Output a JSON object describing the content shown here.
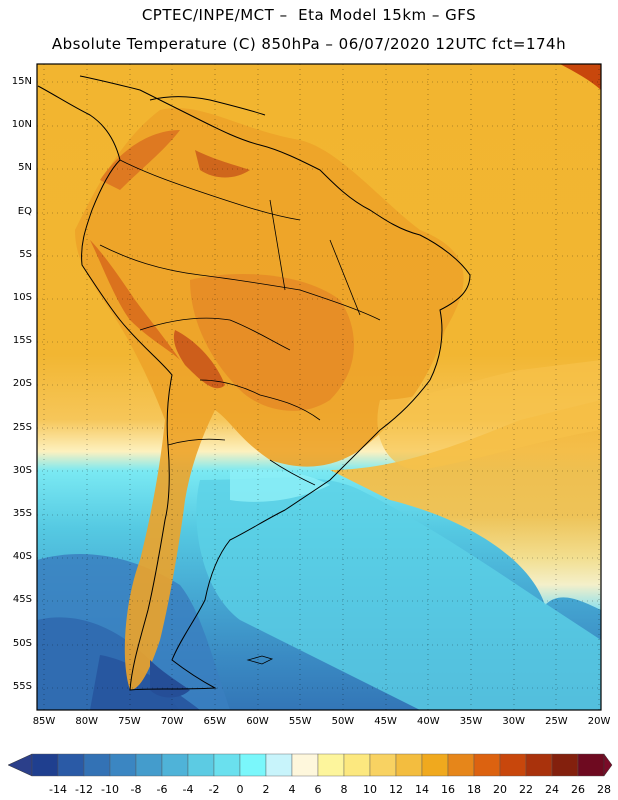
{
  "header": {
    "line1": "CPTEC/INPE/MCT –  Eta Model 15km – GFS",
    "line2": "Absolute Temperature (C) 850hPa – 06/07/2020 12UTC fct=174h"
  },
  "map": {
    "lat_labels": [
      "15N",
      "10N",
      "5N",
      "EQ",
      "5S",
      "10S",
      "15S",
      "20S",
      "25S",
      "30S",
      "35S",
      "40S",
      "45S",
      "50S",
      "55S"
    ],
    "lon_labels": [
      "85W",
      "80W",
      "75W",
      "70W",
      "65W",
      "60W",
      "55W",
      "50W",
      "45W",
      "40W",
      "35W",
      "30W",
      "25W",
      "20W"
    ]
  },
  "colorbar": {
    "labels": [
      "-14",
      "-12",
      "-10",
      "-8",
      "-6",
      "-4",
      "-2",
      "0",
      "2",
      "4",
      "6",
      "8",
      "10",
      "12",
      "14",
      "16",
      "18",
      "20",
      "22",
      "24",
      "26",
      "28"
    ],
    "colors": [
      "#1f3f8f",
      "#2a5aa6",
      "#3372b5",
      "#3b86c2",
      "#449ccc",
      "#4fb3d8",
      "#5ccbe3",
      "#6ae0ee",
      "#7af7fb",
      "#c8f4fb",
      "#fef7dc",
      "#fdf59c",
      "#fce87f",
      "#f8d262",
      "#f3bd3f",
      "#f0a91e",
      "#e6861a",
      "#dc6210",
      "#c8470c",
      "#a9320c",
      "#83200d",
      "#6e0a20"
    ],
    "left_end": "#2b3f8a",
    "right_end": "#7a0c28"
  }
}
